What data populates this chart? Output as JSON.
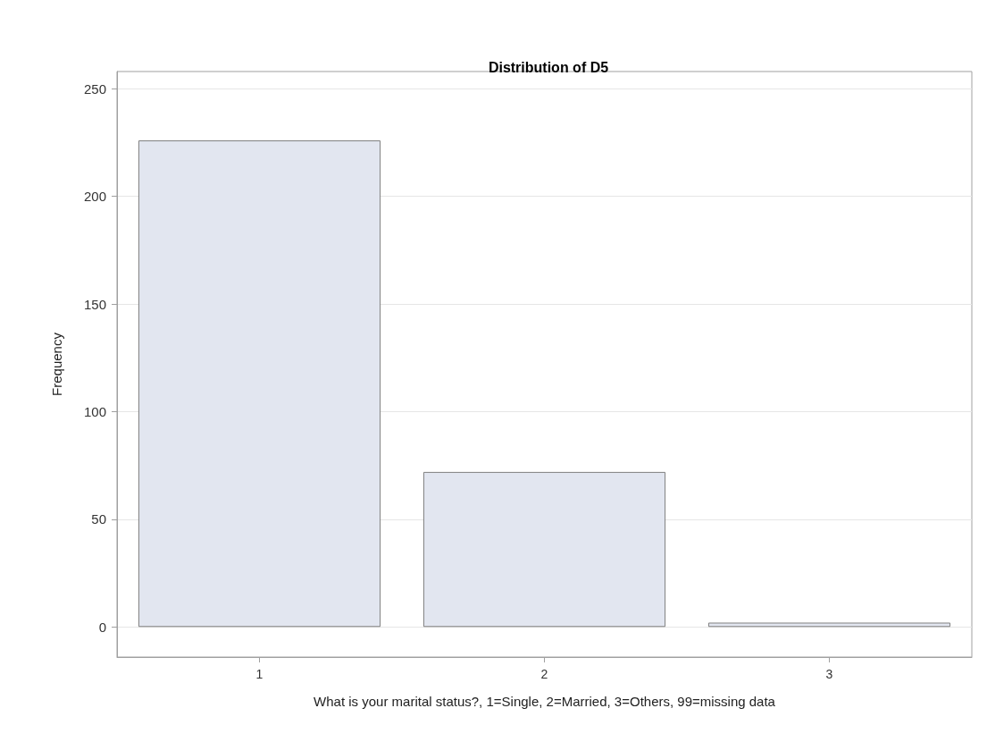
{
  "chart_data": {
    "type": "bar",
    "title": "Distribution of D5",
    "xlabel": "What is your marital status?, 1=Single, 2=Married, 3=Others, 99=missing data",
    "ylabel": "Frequency",
    "categories": [
      "1",
      "2",
      "3"
    ],
    "series": [
      {
        "color": "#e2e6f0",
        "values": [
          226,
          72,
          2
        ]
      }
    ],
    "ylim": [
      -14,
      258
    ],
    "yticks": [
      0,
      50,
      100,
      150,
      200,
      250
    ],
    "grid": "y"
  }
}
